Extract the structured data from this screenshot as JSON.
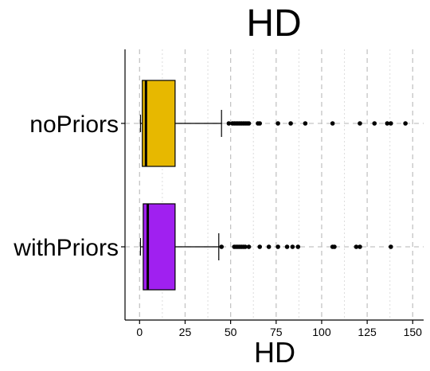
{
  "chart_data": {
    "type": "boxplot",
    "orientation": "horizontal",
    "title": "HD",
    "xlabel": "HD",
    "ylabel": "",
    "xlim": [
      -8,
      156
    ],
    "x_ticks": [
      0,
      25,
      50,
      75,
      100,
      125,
      150
    ],
    "grid": true,
    "categories": [
      "noPriors",
      "withPriors"
    ],
    "boxes": [
      {
        "name": "noPriors",
        "color": "#E7B800",
        "whisker_low": 0.5,
        "q1": 1.5,
        "median": 3.5,
        "q3": 19.5,
        "whisker_high": 45,
        "outliers": [
          49,
          51,
          52,
          53,
          54,
          55,
          56,
          57,
          58,
          59,
          60,
          65,
          66,
          76,
          83,
          91,
          106,
          121,
          129,
          136,
          138,
          146
        ]
      },
      {
        "name": "withPriors",
        "color": "#A020F0",
        "whisker_low": 0.5,
        "q1": 2,
        "median": 4.5,
        "q3": 19.5,
        "whisker_high": 43.5,
        "outliers": [
          45,
          52,
          53,
          54,
          55,
          56,
          57,
          58,
          60,
          66,
          71,
          76,
          81,
          84,
          87,
          106,
          107,
          119,
          121,
          138
        ]
      }
    ]
  }
}
